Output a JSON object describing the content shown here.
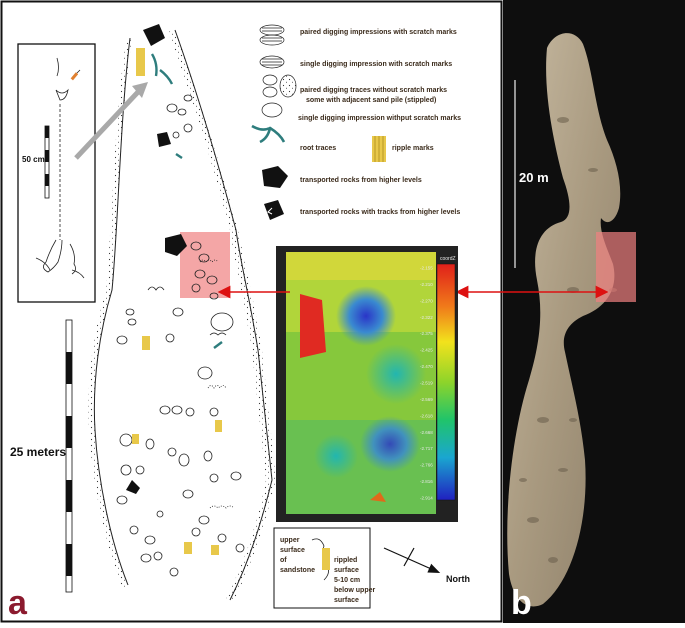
{
  "panel_a": {
    "panel_letter": "a",
    "inset_scale_label": "50 cm",
    "main_scale_label": "25 meters",
    "north_label": "North",
    "legend": {
      "paired_with_scratch": "paired digging impressions with scratch marks",
      "single_with_scratch": "single digging impression with scratch marks",
      "paired_without_scratch_line1": "paired digging traces without scratch marks",
      "paired_without_scratch_line2": "some  with adjacent sand pile (stippled)",
      "single_without_scratch": "single digging impression withput scratch marks",
      "root_traces": "root traces",
      "ripple_marks": "ripple marks",
      "transported_rocks": "transported rocks from higher levels",
      "transported_rocks_tracks": "transported rocks with tracks from higher levels"
    },
    "surface_legend": {
      "upper_line1": "upper",
      "upper_line2": "surface",
      "upper_line3": "of",
      "upper_line4": "sandstone",
      "rippled_line1": "rippled",
      "rippled_line2": "surface",
      "rippled_line3": "5-10 cm",
      "rippled_line4": "below upper",
      "rippled_line5": "surface"
    },
    "colorbar": {
      "title": "coordZ",
      "ticks": [
        "-2.155",
        "-2.210",
        "-2.270",
        "-2.322",
        "-2.375",
        "-2.425",
        "-2.470",
        "-2.519",
        "-2.569",
        "-2.618",
        "-2.668",
        "-2.717",
        "-2.766",
        "-2.816",
        "-2.914"
      ]
    }
  },
  "panel_b": {
    "panel_letter": "b",
    "scale_label": "20 m"
  },
  "colors": {
    "highlight": "#f08080",
    "arrow_red": "#dd1111",
    "root_trace": "#2e7d7d",
    "ripple": "#e8c84a"
  }
}
